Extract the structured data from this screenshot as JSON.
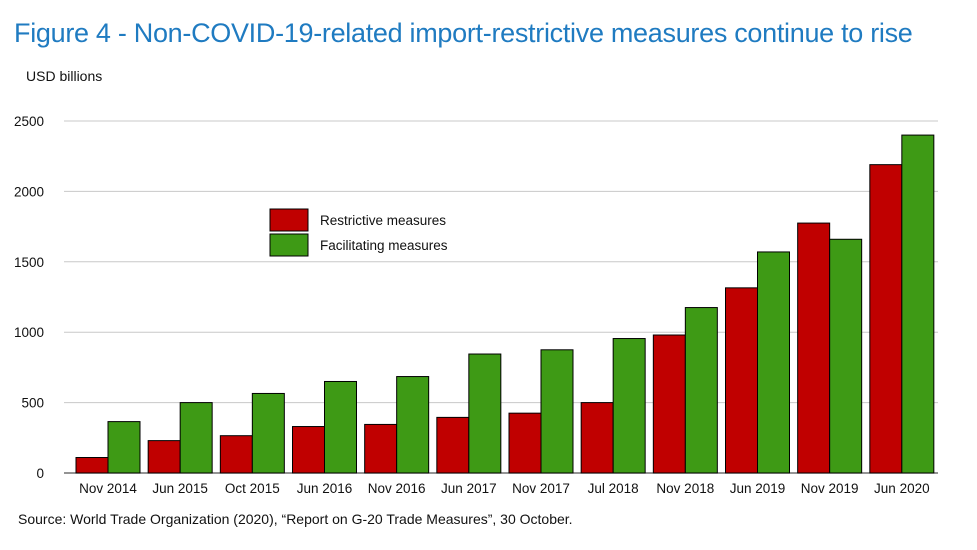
{
  "header": {
    "title": "Figure 4 - Non-COVID-19-related import-restrictive measures continue to rise",
    "unit_label": "USD billions"
  },
  "footer": {
    "source": "Source: World Trade Organization (2020), “Report on G-20 Trade Measures”, 30 October."
  },
  "chart_data": {
    "type": "bar",
    "categories": [
      "Nov 2014",
      "Jun 2015",
      "Oct 2015",
      "Jun 2016",
      "Nov 2016",
      "Jun 2017",
      "Nov 2017",
      "Jul 2018",
      "Nov 2018",
      "Jun 2019",
      "Nov 2019",
      "Jun 2020"
    ],
    "series": [
      {
        "name": "Restrictive measures",
        "color": "#c00000",
        "values": [
          110,
          230,
          265,
          330,
          345,
          395,
          425,
          500,
          980,
          1315,
          1775,
          2190
        ]
      },
      {
        "name": "Facilitating measures",
        "color": "#3e9a15",
        "values": [
          365,
          500,
          565,
          650,
          685,
          845,
          875,
          955,
          1175,
          1570,
          1660,
          2400
        ]
      }
    ],
    "ylim": [
      0,
      2500
    ],
    "yticks": [
      0,
      500,
      1000,
      1500,
      2000,
      2500
    ],
    "grid": true,
    "legend_position": "upper-left"
  }
}
